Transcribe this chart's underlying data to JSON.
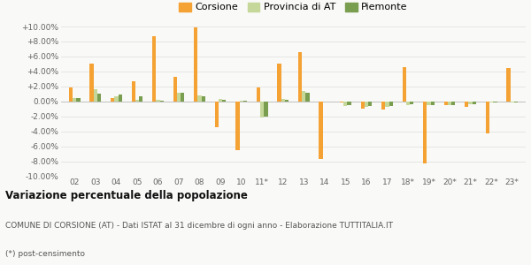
{
  "categories": [
    "02",
    "03",
    "04",
    "05",
    "06",
    "07",
    "08",
    "09",
    "10",
    "11*",
    "12",
    "13",
    "14",
    "15",
    "16",
    "17",
    "18*",
    "19*",
    "20*",
    "21*",
    "22*",
    "23*"
  ],
  "corsione": [
    1.8,
    5.0,
    0.5,
    2.7,
    8.7,
    3.3,
    9.9,
    -3.5,
    -6.5,
    1.9,
    5.0,
    6.6,
    -7.7,
    -0.2,
    -1.0,
    -1.1,
    4.6,
    -8.3,
    -0.5,
    -0.7,
    -4.3,
    4.5
  ],
  "provincia": [
    0.4,
    1.6,
    0.7,
    0.2,
    0.2,
    1.2,
    0.8,
    0.3,
    0.05,
    -2.2,
    0.3,
    1.4,
    0.0,
    -0.6,
    -0.7,
    -0.7,
    -0.5,
    -0.5,
    -0.5,
    -0.4,
    -0.2,
    -0.15
  ],
  "piemonte": [
    0.4,
    1.0,
    0.9,
    0.7,
    0.1,
    1.1,
    0.7,
    0.2,
    0.1,
    -2.0,
    0.2,
    1.2,
    0.0,
    -0.5,
    -0.6,
    -0.6,
    -0.4,
    -0.45,
    -0.45,
    -0.35,
    -0.1,
    -0.1
  ],
  "color_corsione": "#f5a234",
  "color_provincia": "#c5d89a",
  "color_piemonte": "#7a9e50",
  "title_bold": "Variazione percentuale della popolazione",
  "subtitle": "COMUNE DI CORSIONE (AT) - Dati ISTAT al 31 dicembre di ogni anno - Elaborazione TUTTITALIA.IT",
  "footnote": "(*) post-censimento",
  "ylim": [
    -10.0,
    10.0
  ],
  "yticks": [
    -10,
    -8,
    -6,
    -4,
    -2,
    0,
    2,
    4,
    6,
    8,
    10
  ],
  "bg_color": "#f9f9f7",
  "legend_labels": [
    "Corsione",
    "Provincia di AT",
    "Piemonte"
  ],
  "bar_width": 0.18
}
